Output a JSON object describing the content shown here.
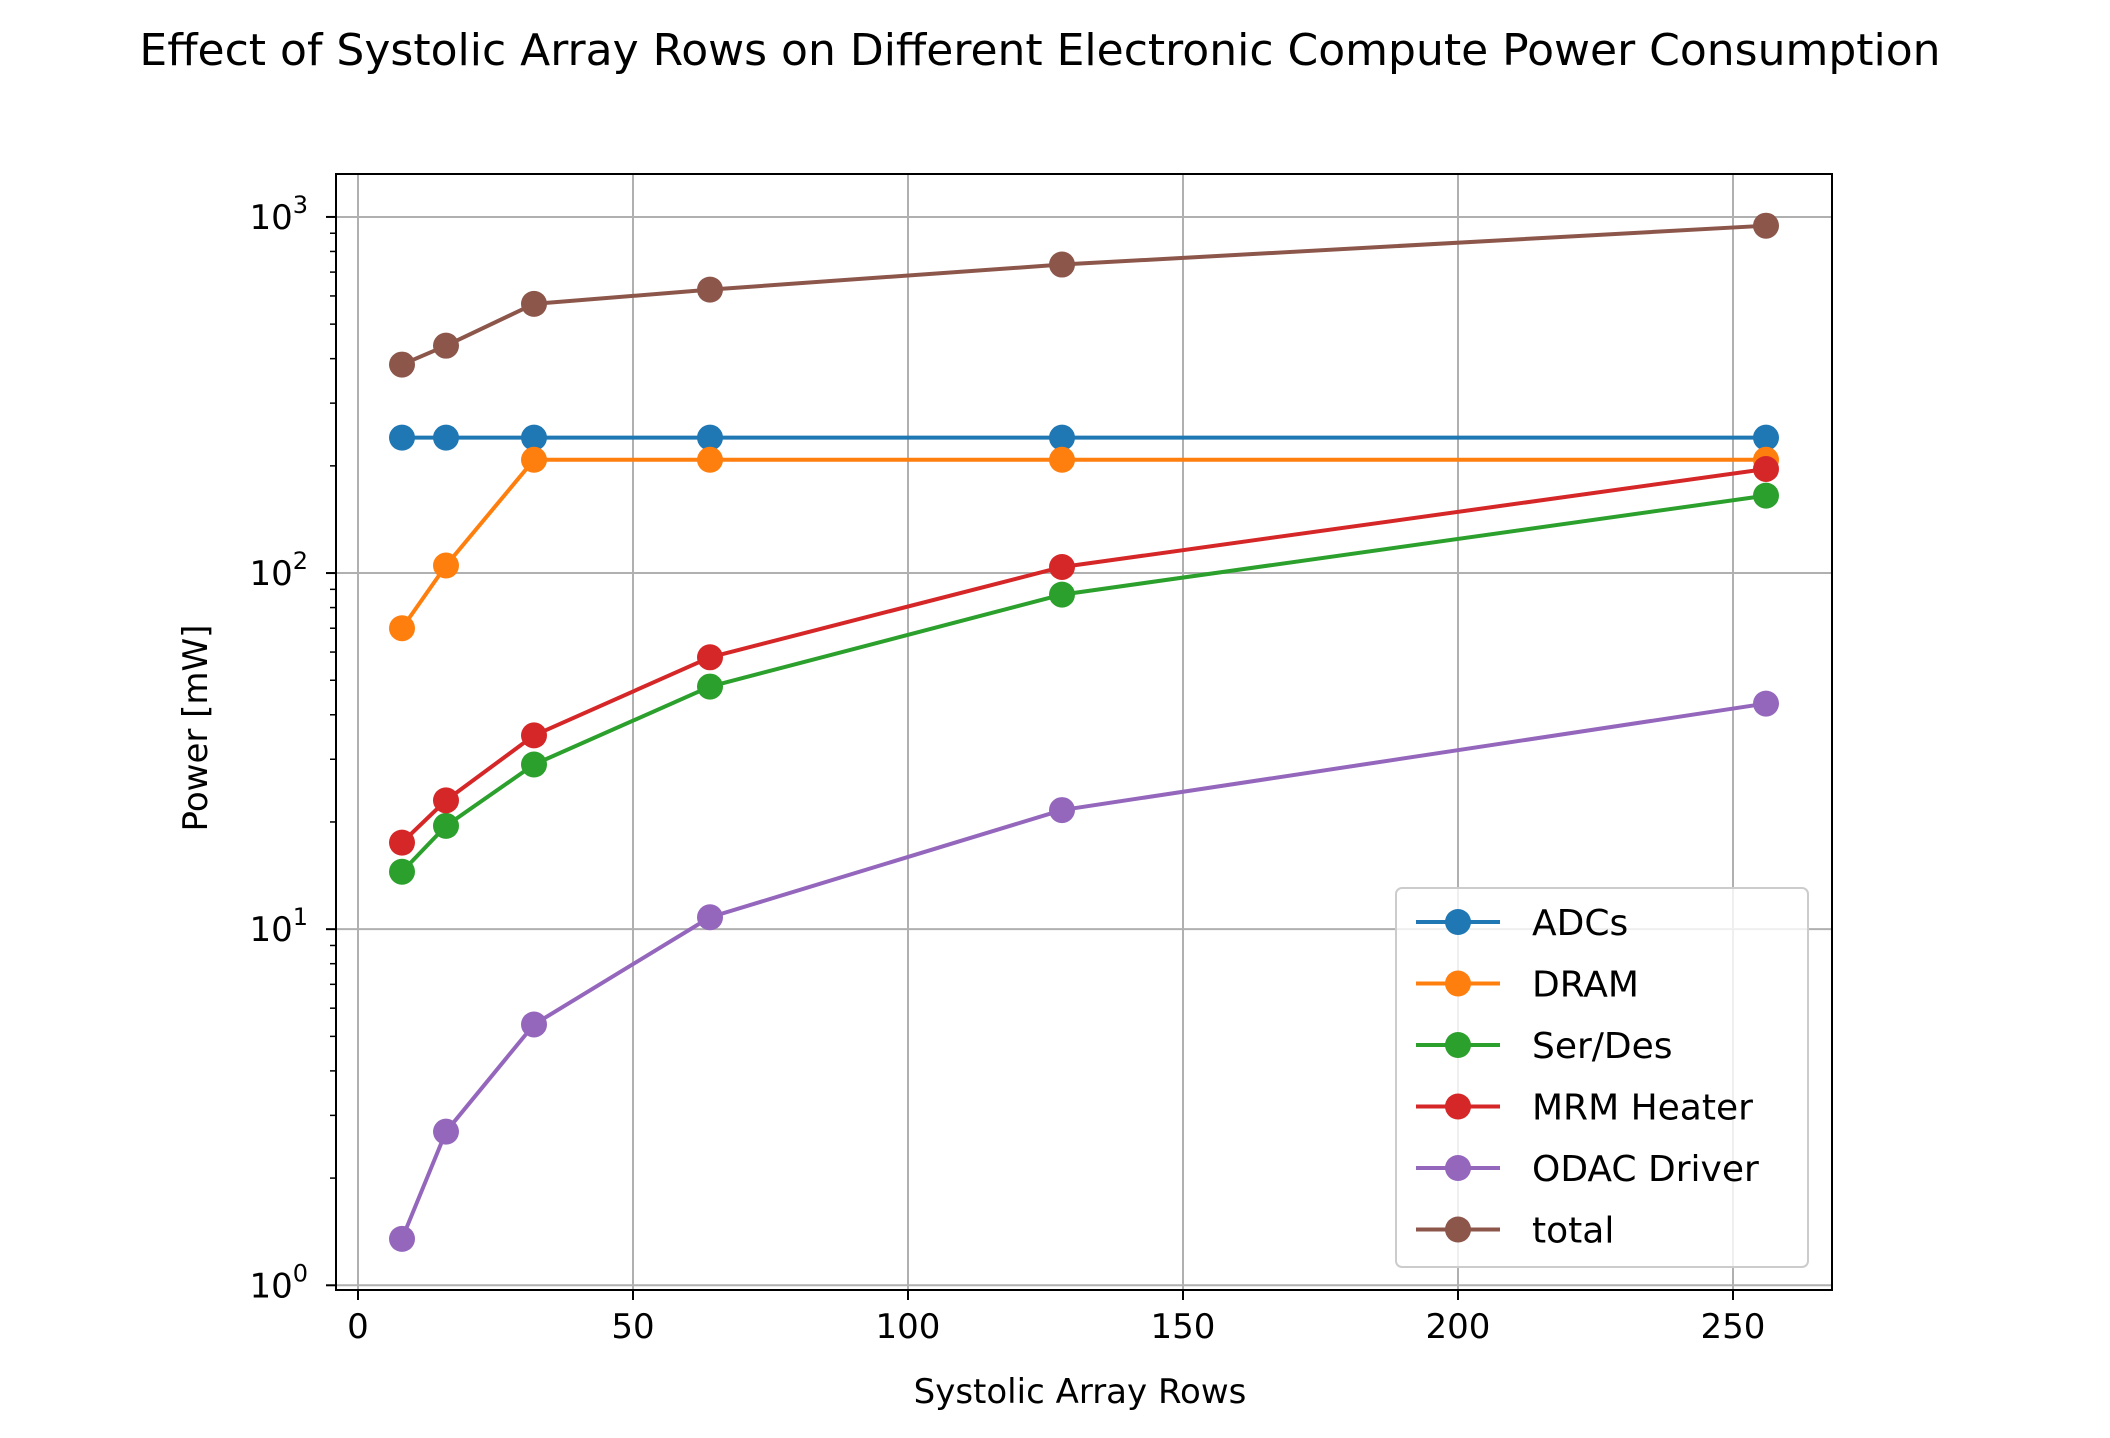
{
  "chart_data": {
    "type": "line",
    "title": "Effect of Systolic Array Rows on Different Electronic Compute Power Consumption",
    "xlabel": "Systolic Array Rows",
    "ylabel": "Power [mW]",
    "x_scale": "linear",
    "y_scale": "log",
    "xlim": [
      -4,
      268
    ],
    "ylim": [
      0.97,
      1320
    ],
    "x_ticks": [
      0,
      50,
      100,
      150,
      200,
      250
    ],
    "y_ticks": [
      {
        "base": "10",
        "exp": "0",
        "value": 1
      },
      {
        "base": "10",
        "exp": "1",
        "value": 10
      },
      {
        "base": "10",
        "exp": "2",
        "value": 100
      },
      {
        "base": "10",
        "exp": "3",
        "value": 1000
      }
    ],
    "grid": true,
    "legend_position": "lower right",
    "x": [
      8,
      16,
      32,
      64,
      128,
      256
    ],
    "series": [
      {
        "name": "ADCs",
        "color": "#1f77b4",
        "values": [
          240,
          240,
          240,
          240,
          240,
          240
        ]
      },
      {
        "name": "DRAM",
        "color": "#ff7f0e",
        "values": [
          70,
          105,
          208,
          208,
          208,
          208
        ]
      },
      {
        "name": "Ser/Des",
        "color": "#2ca02c",
        "values": [
          14.5,
          19.5,
          29,
          48,
          87,
          165
        ]
      },
      {
        "name": "MRM Heater",
        "color": "#d62728",
        "values": [
          17.5,
          23,
          35,
          58,
          104,
          196
        ]
      },
      {
        "name": "ODAC Driver",
        "color": "#9467bd",
        "values": [
          1.35,
          2.7,
          5.4,
          10.8,
          21.6,
          43
        ]
      },
      {
        "name": "total",
        "color": "#8c564b",
        "values": [
          385,
          435,
          570,
          625,
          735,
          945
        ]
      }
    ]
  }
}
